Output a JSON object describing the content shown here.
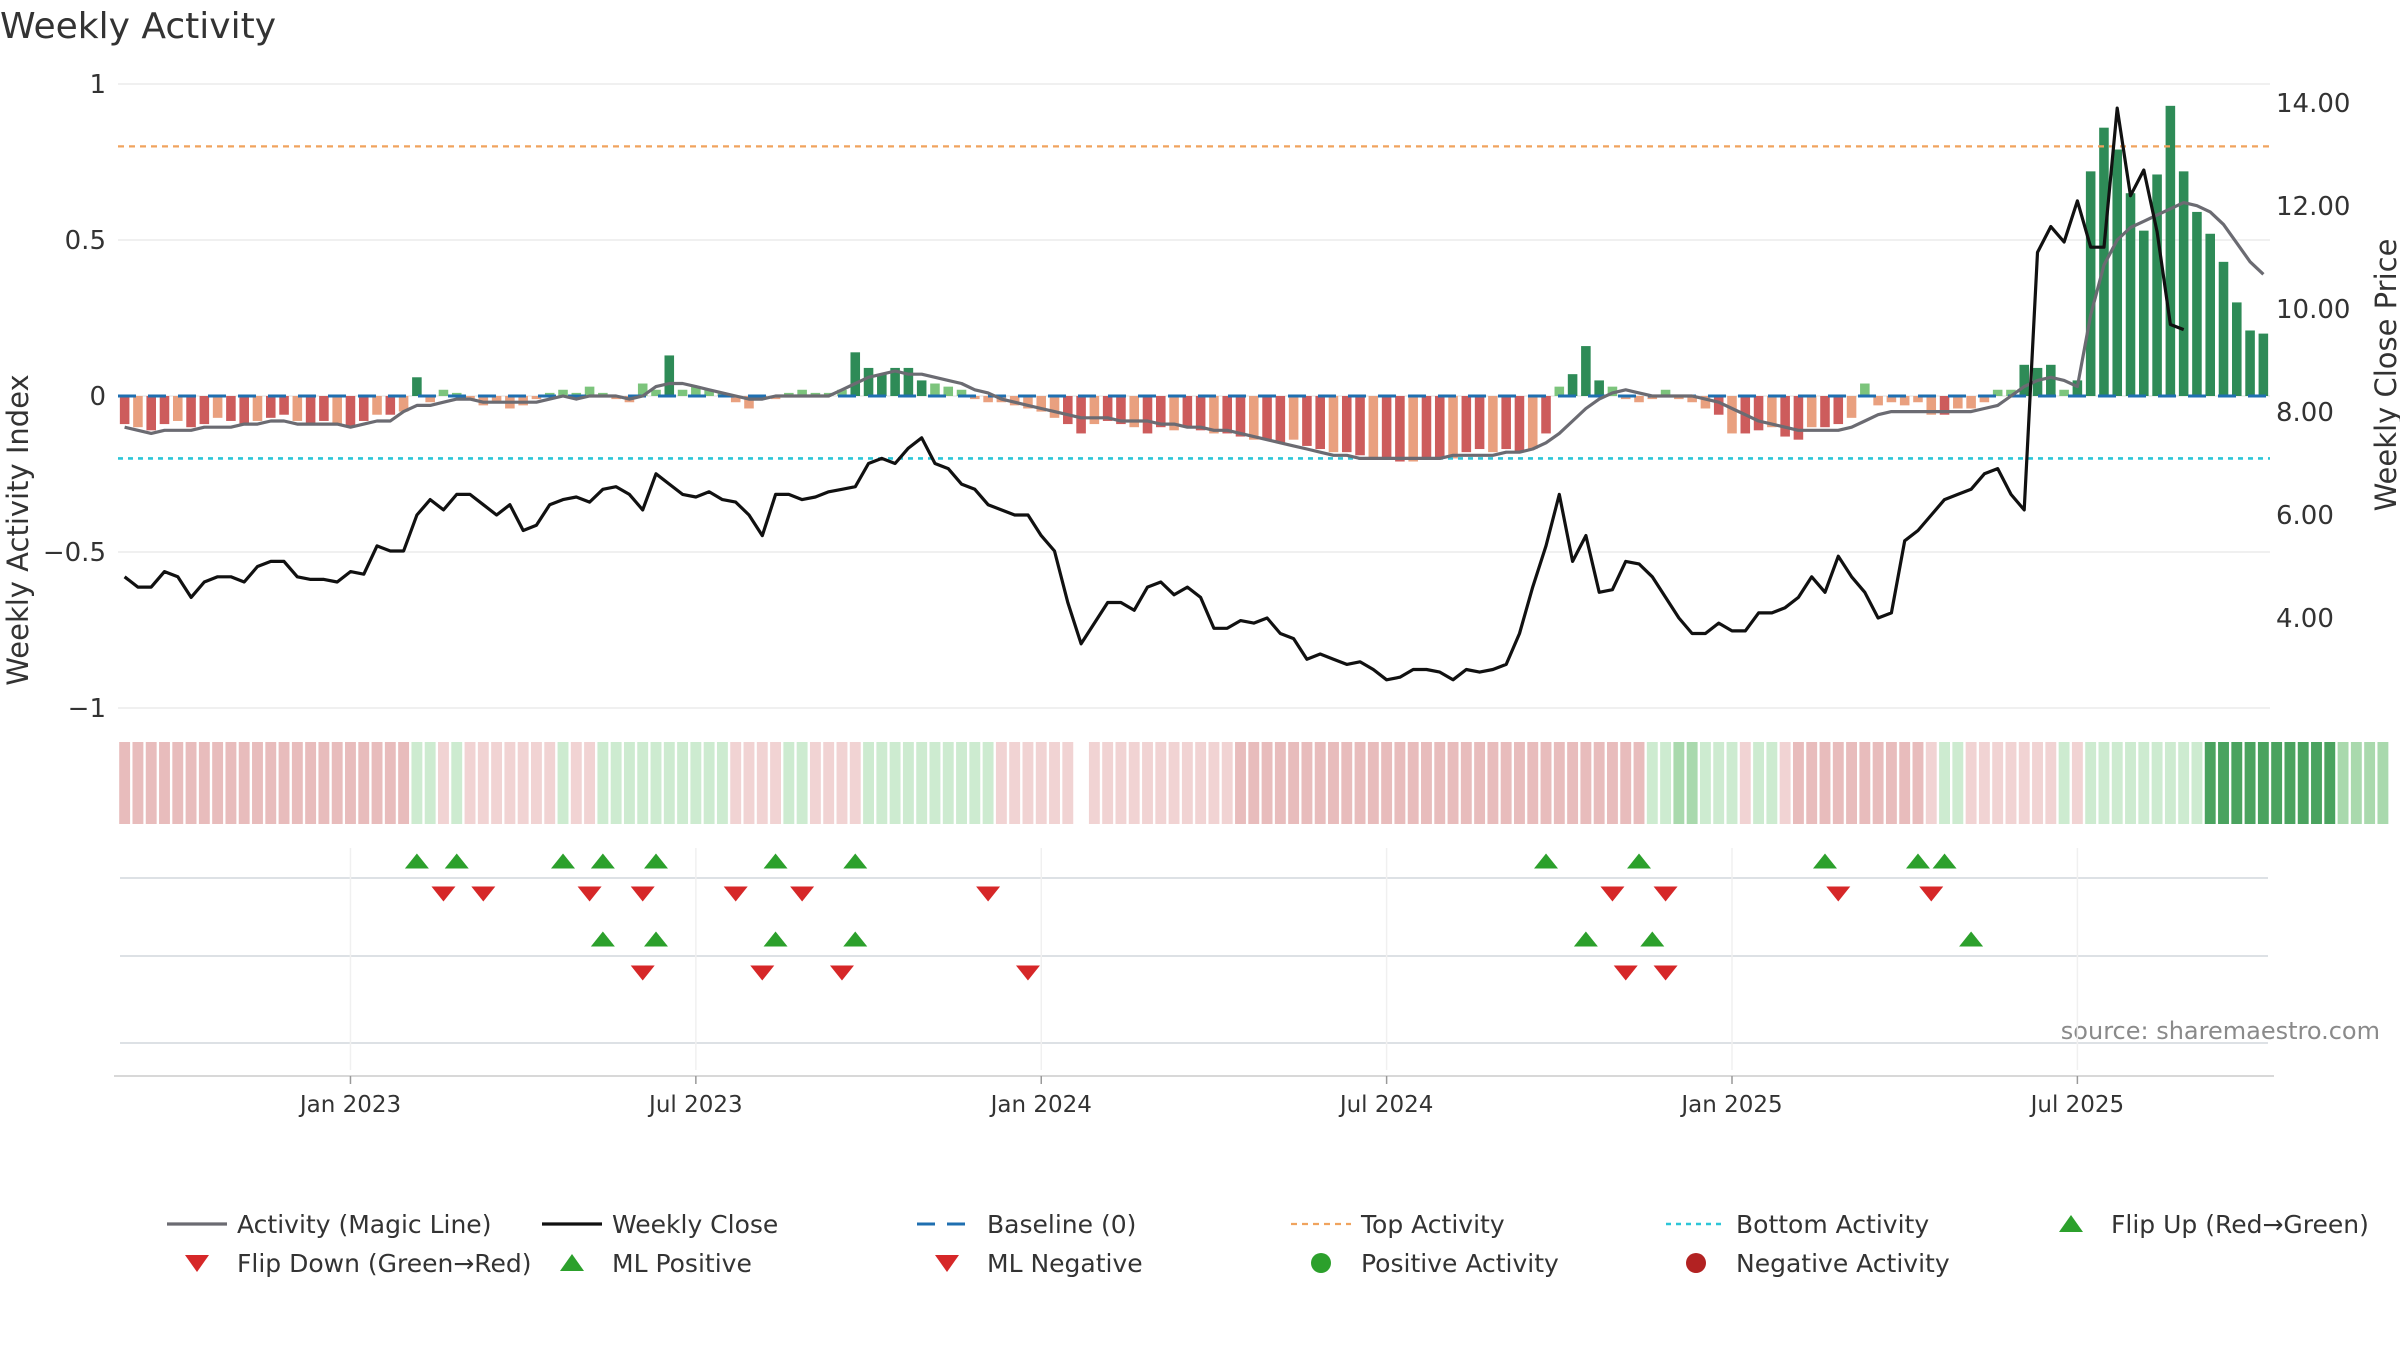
{
  "chart_data": {
    "type": "bar",
    "title": "Weekly Activity",
    "ylabel": "Weekly Activity Index",
    "y2label": "Weekly Close Price",
    "ylim": [
      -1,
      1
    ],
    "y2lim": [
      1.9,
      14.5
    ],
    "yticks": [
      1,
      0.5,
      0,
      -0.5,
      -1
    ],
    "ytick_labels": [
      "1",
      "0.5",
      "0",
      "−0.5",
      "−1"
    ],
    "y2ticks": [
      14,
      12,
      10,
      8,
      6,
      4
    ],
    "y2tick_labels": [
      "14.00",
      "12.00",
      "10.00",
      "8.00",
      "6.00",
      "4.00"
    ],
    "x_start": "2022-09-05",
    "x_tick_labels": [
      "Jan 2023",
      "Jul 2023",
      "Jan 2024",
      "Jul 2024",
      "Jan 2025",
      "Jul 2025"
    ],
    "x_tick_week_index": [
      17,
      43,
      69,
      95,
      121,
      147
    ],
    "top_activity": 0.8,
    "bottom_activity": -0.2,
    "source": "source: sharemaestro.com",
    "activity": [
      -0.09,
      -0.1,
      -0.11,
      -0.09,
      -0.08,
      -0.1,
      -0.09,
      -0.07,
      -0.08,
      -0.09,
      -0.08,
      -0.07,
      -0.06,
      -0.08,
      -0.09,
      -0.08,
      -0.09,
      -0.1,
      -0.08,
      -0.06,
      -0.06,
      -0.05,
      0.06,
      -0.02,
      0.02,
      0.01,
      -0.01,
      -0.03,
      -0.02,
      -0.04,
      -0.03,
      -0.01,
      0.01,
      0.02,
      0.01,
      0.03,
      0.01,
      -0.01,
      -0.02,
      0.04,
      0.02,
      0.13,
      0.02,
      0.03,
      0.02,
      0.01,
      -0.02,
      -0.04,
      -0.01,
      -0.01,
      0.01,
      0.02,
      0.01,
      0.01,
      0.02,
      0.14,
      0.09,
      0.07,
      0.09,
      0.09,
      0.05,
      0.04,
      0.03,
      0.02,
      -0.01,
      -0.02,
      -0.02,
      -0.03,
      -0.04,
      -0.05,
      -0.07,
      -0.09,
      -0.12,
      -0.09,
      -0.08,
      -0.09,
      -0.1,
      -0.12,
      -0.1,
      -0.11,
      -0.1,
      -0.11,
      -0.12,
      -0.12,
      -0.13,
      -0.14,
      -0.14,
      -0.15,
      -0.14,
      -0.16,
      -0.17,
      -0.18,
      -0.18,
      -0.19,
      -0.2,
      -0.2,
      -0.21,
      -0.21,
      -0.2,
      -0.2,
      -0.2,
      -0.18,
      -0.17,
      -0.18,
      -0.17,
      -0.18,
      -0.17,
      -0.12,
      0.03,
      0.07,
      0.16,
      0.05,
      0.03,
      -0.01,
      -0.02,
      -0.01,
      0.02,
      -0.01,
      -0.02,
      -0.04,
      -0.06,
      -0.12,
      -0.12,
      -0.11,
      -0.1,
      -0.13,
      -0.14,
      -0.1,
      -0.1,
      -0.09,
      -0.07,
      0.04,
      -0.03,
      -0.02,
      -0.03,
      -0.02,
      -0.06,
      -0.06,
      -0.04,
      -0.04,
      -0.02,
      0.02,
      0.02,
      0.1,
      0.09,
      0.1,
      0.02,
      0.05,
      0.72,
      0.86,
      0.79,
      0.65,
      0.53,
      0.71,
      0.93,
      0.72,
      0.59,
      0.52,
      0.43,
      0.3,
      0.21,
      0.2
    ],
    "magic_line": [
      -0.1,
      -0.11,
      -0.12,
      -0.11,
      -0.11,
      -0.11,
      -0.1,
      -0.1,
      -0.1,
      -0.09,
      -0.09,
      -0.08,
      -0.08,
      -0.09,
      -0.09,
      -0.09,
      -0.09,
      -0.1,
      -0.09,
      -0.08,
      -0.08,
      -0.05,
      -0.03,
      -0.03,
      -0.02,
      -0.01,
      -0.01,
      -0.02,
      -0.02,
      -0.02,
      -0.02,
      -0.02,
      -0.01,
      0.0,
      -0.01,
      0.0,
      0.0,
      0.0,
      -0.01,
      0.0,
      0.03,
      0.04,
      0.04,
      0.03,
      0.02,
      0.01,
      0.0,
      -0.01,
      -0.01,
      0.0,
      0.0,
      0.0,
      0.0,
      0.0,
      0.02,
      0.04,
      0.06,
      0.07,
      0.08,
      0.07,
      0.07,
      0.06,
      0.05,
      0.04,
      0.02,
      0.01,
      -0.01,
      -0.02,
      -0.03,
      -0.04,
      -0.05,
      -0.06,
      -0.07,
      -0.07,
      -0.07,
      -0.08,
      -0.08,
      -0.08,
      -0.09,
      -0.09,
      -0.1,
      -0.1,
      -0.11,
      -0.11,
      -0.12,
      -0.13,
      -0.14,
      -0.15,
      -0.16,
      -0.17,
      -0.18,
      -0.19,
      -0.19,
      -0.2,
      -0.2,
      -0.2,
      -0.2,
      -0.2,
      -0.2,
      -0.2,
      -0.19,
      -0.19,
      -0.19,
      -0.19,
      -0.18,
      -0.18,
      -0.17,
      -0.15,
      -0.12,
      -0.08,
      -0.04,
      -0.01,
      0.01,
      0.02,
      0.01,
      0.0,
      0.0,
      0.0,
      0.0,
      -0.01,
      -0.02,
      -0.04,
      -0.06,
      -0.08,
      -0.09,
      -0.1,
      -0.11,
      -0.11,
      -0.11,
      -0.11,
      -0.1,
      -0.08,
      -0.06,
      -0.05,
      -0.05,
      -0.05,
      -0.05,
      -0.05,
      -0.05,
      -0.05,
      -0.04,
      -0.03,
      0.0,
      0.03,
      0.05,
      0.06,
      0.05,
      0.03,
      0.26,
      0.42,
      0.5,
      0.54,
      0.56,
      0.58,
      0.6,
      0.62,
      0.61,
      0.59,
      0.55,
      0.49,
      0.43,
      0.39
    ],
    "close": [
      4.8,
      4.6,
      4.6,
      4.9,
      4.8,
      4.4,
      4.7,
      4.8,
      4.8,
      4.7,
      5.0,
      5.1,
      5.1,
      4.8,
      4.75,
      4.75,
      4.7,
      4.9,
      4.85,
      5.4,
      5.3,
      5.3,
      6.0,
      6.3,
      6.1,
      6.4,
      6.4,
      6.2,
      6.0,
      6.2,
      5.7,
      5.8,
      6.2,
      6.3,
      6.35,
      6.25,
      6.5,
      6.55,
      6.4,
      6.1,
      6.8,
      6.6,
      6.4,
      6.35,
      6.45,
      6.3,
      6.25,
      6.0,
      5.6,
      6.4,
      6.4,
      6.3,
      6.35,
      6.45,
      6.5,
      6.55,
      7.0,
      7.1,
      7.0,
      7.3,
      7.5,
      7.0,
      6.9,
      6.6,
      6.5,
      6.2,
      6.1,
      6.0,
      6.0,
      5.6,
      5.3,
      4.3,
      3.5,
      3.9,
      4.3,
      4.3,
      4.15,
      4.6,
      4.7,
      4.45,
      4.6,
      4.4,
      3.8,
      3.8,
      3.95,
      3.9,
      4.0,
      3.7,
      3.6,
      3.2,
      3.3,
      3.2,
      3.1,
      3.15,
      3.0,
      2.8,
      2.85,
      3.0,
      3.0,
      2.95,
      2.8,
      3.0,
      2.95,
      3.0,
      3.1,
      3.7,
      4.6,
      5.4,
      6.4,
      5.1,
      5.6,
      4.5,
      4.55,
      5.1,
      5.05,
      4.8,
      4.4,
      4.0,
      3.7,
      3.7,
      3.9,
      3.75,
      3.75,
      4.1,
      4.1,
      4.2,
      4.4,
      4.8,
      4.5,
      5.2,
      4.8,
      4.5,
      4.0,
      4.1,
      5.5,
      5.7,
      6.0,
      6.3,
      6.4,
      6.5,
      6.8,
      6.9,
      6.4,
      6.1,
      11.1,
      11.6,
      11.3,
      12.1,
      11.2,
      11.2,
      13.9,
      12.2,
      12.7,
      11.5,
      9.7,
      9.6
    ],
    "strip_levels": [
      -2,
      -2,
      -2,
      -2,
      -2,
      -2,
      -2,
      -2,
      -2,
      -2,
      -2,
      -2,
      -2,
      -2,
      -2,
      -2,
      -2,
      -2,
      -2,
      -2,
      -2,
      -2,
      1,
      1,
      -1,
      1,
      -1,
      -1,
      -1,
      -1,
      -1,
      -1,
      -1,
      1,
      -1,
      -1,
      1,
      1,
      1,
      1,
      1,
      1,
      1,
      1,
      1,
      1,
      -1,
      -1,
      -1,
      -1,
      1,
      1,
      -1,
      -1,
      -1,
      -1,
      1,
      1,
      1,
      1,
      1,
      1,
      1,
      1,
      1,
      1,
      -1,
      -1,
      -1,
      -1,
      -1,
      -1,
      -1,
      -1,
      -1,
      -1,
      -1,
      -1,
      -1,
      -1,
      -1,
      -1,
      -1,
      -1,
      -2,
      -2,
      -2,
      -2,
      -2,
      -2,
      -2,
      -2,
      -2,
      -2,
      -2,
      -2,
      -2,
      -2,
      -2,
      -2,
      -2,
      -2,
      -2,
      -2,
      -2,
      -2,
      -2,
      -2,
      -2,
      -2,
      -2,
      -2,
      -2,
      -2,
      -2,
      1,
      1,
      2,
      2,
      1,
      1,
      1,
      -1,
      1,
      1,
      -1,
      -2,
      -2,
      -2,
      -2,
      -2,
      -2,
      -2,
      -2,
      -2,
      -2,
      -1,
      1,
      1,
      -1,
      -1,
      -1,
      -1,
      -1,
      -1,
      -1,
      1,
      -1,
      1,
      1,
      1,
      1,
      1,
      1,
      1,
      1,
      1,
      3,
      3,
      3,
      3,
      3,
      3,
      3,
      3,
      3,
      3,
      2,
      2,
      2,
      2
    ],
    "strip_gap_after_index": 72,
    "flip_up_weeks": [
      22,
      25,
      33,
      36,
      40,
      49,
      55,
      107,
      114,
      128,
      135,
      137
    ],
    "flip_down_weeks": [
      24,
      27,
      35,
      39,
      46,
      51,
      65,
      112,
      116,
      129,
      136
    ],
    "ml_positive_weeks": [
      36,
      40,
      49,
      55,
      110,
      115,
      139
    ],
    "ml_negative_weeks": [
      39,
      48,
      54,
      68,
      113,
      116
    ],
    "colors": {
      "green_dark": "#2e8b57",
      "green_light": "#7cc47c",
      "red_dark": "#cd5c5c",
      "red_light": "#e9a07f",
      "magic_line": "#6b6b72",
      "close_line": "#111111",
      "baseline": "#1f6fb0",
      "top_activity": "#f0a35e",
      "bottom_activity": "#2bc6d8",
      "flip_up": "#2ca02c",
      "flip_down": "#d62728",
      "positive_activity": "#2ca02c",
      "negative_activity": "#b22222"
    },
    "legend": [
      {
        "label": "Activity (Magic Line)",
        "kind": "line-gray"
      },
      {
        "label": "Weekly Close",
        "kind": "line-black"
      },
      {
        "label": "Baseline (0)",
        "kind": "line-dash-blue"
      },
      {
        "label": "Top Activity",
        "kind": "line-dot-orange"
      },
      {
        "label": "Bottom Activity",
        "kind": "line-dot-cyan"
      },
      {
        "label": "Flip Up (Red→Green)",
        "kind": "triangle-up"
      },
      {
        "label": "Flip Down (Green→Red)",
        "kind": "triangle-down"
      },
      {
        "label": "ML Positive",
        "kind": "triangle-up"
      },
      {
        "label": "ML Negative",
        "kind": "triangle-down"
      },
      {
        "label": "Positive Activity",
        "kind": "dot-green"
      },
      {
        "label": "Negative Activity",
        "kind": "dot-red"
      }
    ]
  }
}
